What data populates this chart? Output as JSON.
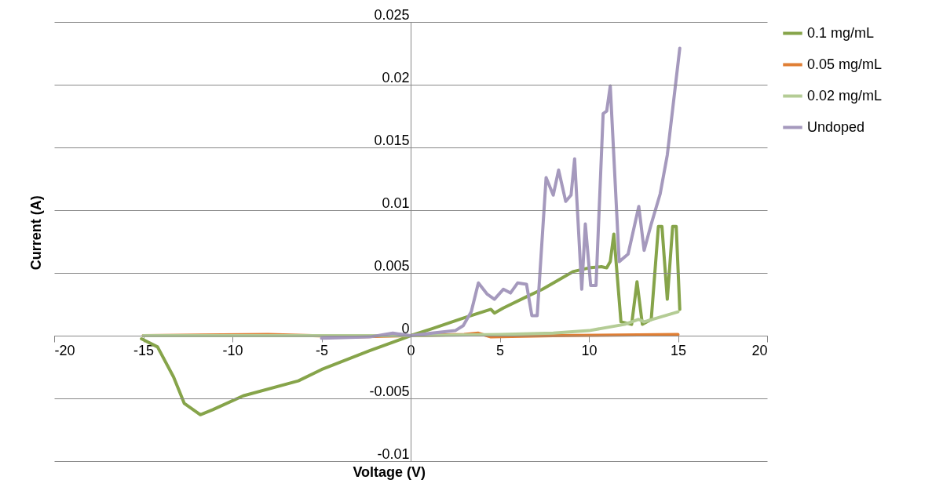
{
  "chart_data": {
    "type": "line",
    "xlabel": "Voltage (V)",
    "ylabel": "Current (A)",
    "xlim": [
      -20,
      20
    ],
    "xticks": [
      -20,
      -15,
      -10,
      -5,
      0,
      5,
      10,
      15,
      20
    ],
    "ylim": [
      -0.01,
      0.025
    ],
    "yticks": [
      -0.01,
      -0.005,
      0,
      0.005,
      0.01,
      0.015,
      0.02,
      0.025
    ],
    "grid": "y",
    "legend": "right",
    "marker": "none",
    "line_style": "solid",
    "series": [
      {
        "name": "0.1 mg/mL",
        "color": "#86a44a",
        "x": [
          -15.1,
          -14.2,
          -13.3,
          -12.7,
          -11.8,
          -11.1,
          -9.4,
          -6.3,
          -5,
          -2.3,
          0,
          1.2,
          2.95,
          3.6,
          4.5,
          4.7,
          5.2,
          6.5,
          7.4,
          9.1,
          10,
          10.7,
          11,
          11.2,
          11.4,
          11.8,
          12.4,
          12.7,
          13,
          13.5,
          13.9,
          14.1,
          14.4,
          14.7,
          14.9,
          15.1
        ],
        "values": [
          -0.00025,
          -0.0009,
          -0.0033,
          -0.0054,
          -0.0063,
          -0.0059,
          -0.0048,
          -0.0036,
          -0.0027,
          -0.0012,
          0,
          0.00055,
          0.0014,
          0.0017,
          0.0021,
          0.0018,
          0.0022,
          0.0031,
          0.0037,
          0.0051,
          0.0054,
          0.0055,
          0.0054,
          0.0059,
          0.0081,
          0.0011,
          0.0009,
          0.0043,
          0.0009,
          0.0013,
          0.0087,
          0.0087,
          0.0029,
          0.0087,
          0.0087,
          0.0021
        ]
      },
      {
        "name": "0.05 mg/mL",
        "color": "#e07f35",
        "x": [
          -15,
          -8,
          -3,
          0,
          3,
          3.8,
          4.5,
          8,
          15
        ],
        "values": [
          0,
          0.0001,
          -0.0001,
          0,
          0.0001,
          0.0002,
          -0.0001,
          0,
          0.0001
        ]
      },
      {
        "name": "0.02 mg/mL",
        "color": "#b4cc95",
        "x": [
          -15,
          -5,
          0,
          5,
          8,
          10,
          12,
          12.8,
          13.1,
          15
        ],
        "values": [
          0,
          0,
          0,
          0.0001,
          0.0002,
          0.0004,
          0.0009,
          0.0013,
          0.0011,
          0.0019
        ]
      },
      {
        "name": "Undoped",
        "color": "#a599bd",
        "x": [
          -5,
          -2.3,
          -1,
          0,
          1.2,
          2.5,
          2.95,
          3.4,
          3.8,
          4.3,
          4.7,
          5.2,
          5.6,
          6,
          6.5,
          6.8,
          7.1,
          7.6,
          8,
          8.3,
          8.7,
          9,
          9.2,
          9.6,
          9.8,
          10.1,
          10.4,
          10.8,
          11,
          11.2,
          11.7,
          12.2,
          12.8,
          13.1,
          13.5,
          14,
          14.4,
          15.1
        ],
        "values": [
          -0.0002,
          -0.0001,
          0.0002,
          0,
          0.0002,
          0.0004,
          0.0008,
          0.0019,
          0.0042,
          0.0033,
          0.0029,
          0.0037,
          0.0034,
          0.0042,
          0.0041,
          0.0016,
          0.0016,
          0.0126,
          0.0112,
          0.0132,
          0.0107,
          0.0112,
          0.0141,
          0.0037,
          0.0089,
          0.004,
          0.004,
          0.0177,
          0.0179,
          0.0199,
          0.0059,
          0.0065,
          0.0103,
          0.0068,
          0.0089,
          0.0113,
          0.0144,
          0.0229
        ]
      }
    ]
  }
}
